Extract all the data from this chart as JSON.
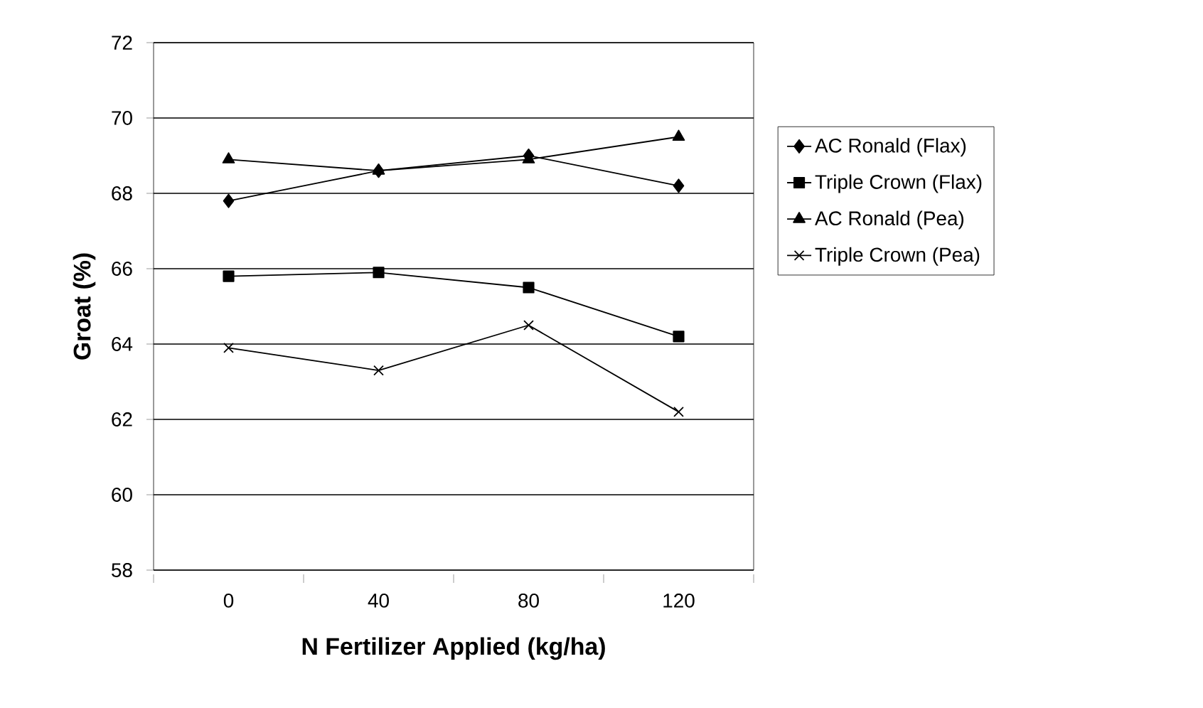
{
  "chart_data": {
    "type": "line",
    "xlabel": "N Fertilizer Applied (kg/ha)",
    "ylabel": "Groat (%)",
    "categories": [
      "0",
      "40",
      "80",
      "120"
    ],
    "series": [
      {
        "name": "AC Ronald (Flax)",
        "color": "#000000",
        "marker": "diamond",
        "values": [
          67.8,
          68.6,
          69.0,
          68.2
        ]
      },
      {
        "name": "Triple Crown (Flax)",
        "color": "#000000",
        "marker": "square",
        "values": [
          65.8,
          65.9,
          65.5,
          64.2
        ]
      },
      {
        "name": "AC Ronald (Pea)",
        "color": "#000000",
        "marker": "triangle",
        "values": [
          68.9,
          68.6,
          68.9,
          69.5
        ]
      },
      {
        "name": "Triple Crown (Pea)",
        "color": "#000000",
        "marker": "cross",
        "values": [
          63.9,
          63.3,
          64.5,
          62.2
        ]
      }
    ],
    "ylim": [
      58,
      72
    ],
    "yticks": [
      58,
      60,
      62,
      64,
      66,
      68,
      70,
      72
    ],
    "grid": "y",
    "legend": "right",
    "line_style": "solid"
  }
}
